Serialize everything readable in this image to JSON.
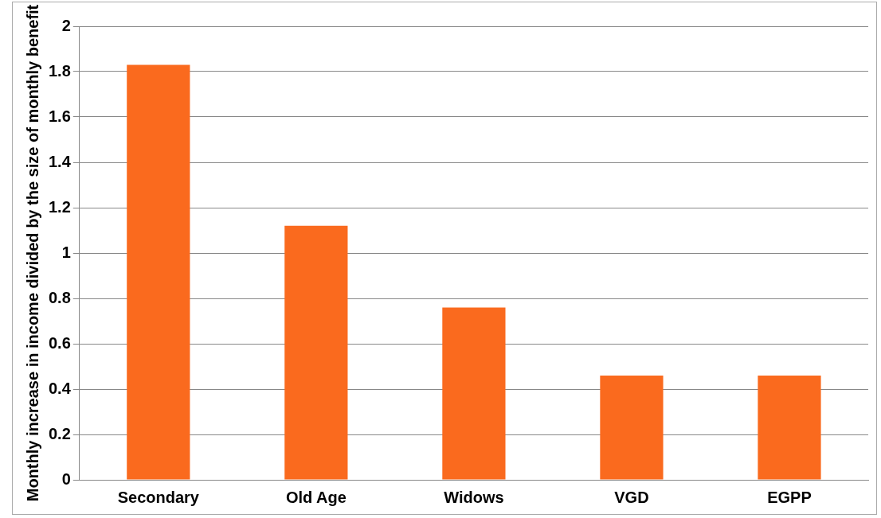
{
  "chart_data": {
    "type": "bar",
    "ylabel": "Monthly increase in income divided by the size of monthly benefit",
    "categories": [
      "Secondary",
      "Old Age",
      "Widows",
      "VGD",
      "EGPP"
    ],
    "values": [
      1.83,
      1.12,
      0.76,
      0.46,
      0.46
    ],
    "color": "#fa6a1e",
    "ylim": [
      0,
      2
    ],
    "yticks": [
      0,
      {
        "value": 0.2,
        "label": "0.2"
      },
      {
        "value": 0.4,
        "label": "0.4"
      },
      {
        "value": 0.6,
        "label": "0.6"
      },
      {
        "value": 0.8,
        "label": "0.8"
      },
      1,
      {
        "value": 1.2,
        "label": "1.2"
      },
      {
        "value": 1.4,
        "label": "1.4"
      },
      {
        "value": 1.6,
        "label": "1.6"
      },
      {
        "value": 1.8,
        "label": "1.8"
      },
      2
    ],
    "grid": "y",
    "legend": false
  }
}
